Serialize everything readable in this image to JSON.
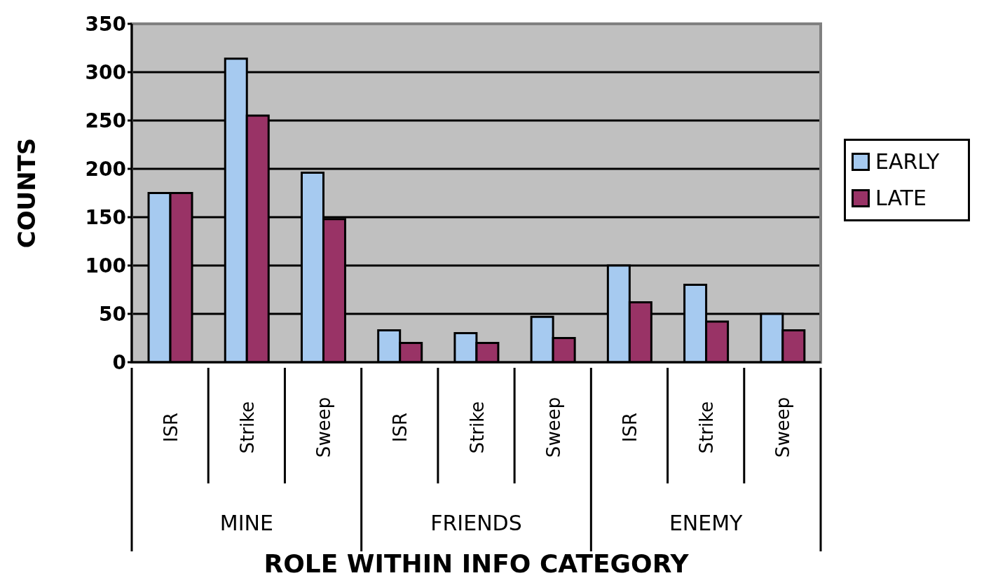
{
  "chart_data": {
    "type": "bar",
    "xlabel": "ROLE WITHIN INFO CATEGORY",
    "ylabel": "COUNTS",
    "categories": [
      "ISR",
      "Strike",
      "Sweep",
      "ISR",
      "Strike",
      "Sweep",
      "ISR",
      "Strike",
      "Sweep"
    ],
    "annotations": [
      "MINE",
      "FRIENDS",
      "ENEMY"
    ],
    "series": [
      {
        "name": "EARLY",
        "color": "#a6caf0",
        "values": [
          175,
          314,
          196,
          33,
          30,
          47,
          100,
          80,
          50
        ]
      },
      {
        "name": "LATE",
        "color": "#993366",
        "values": [
          175,
          255,
          148,
          20,
          20,
          25,
          62,
          42,
          33
        ]
      }
    ],
    "ylim": [
      0,
      350
    ],
    "yticks": [
      0,
      50,
      100,
      150,
      200,
      250,
      300,
      350
    ],
    "grid": "y",
    "legend": "right"
  }
}
